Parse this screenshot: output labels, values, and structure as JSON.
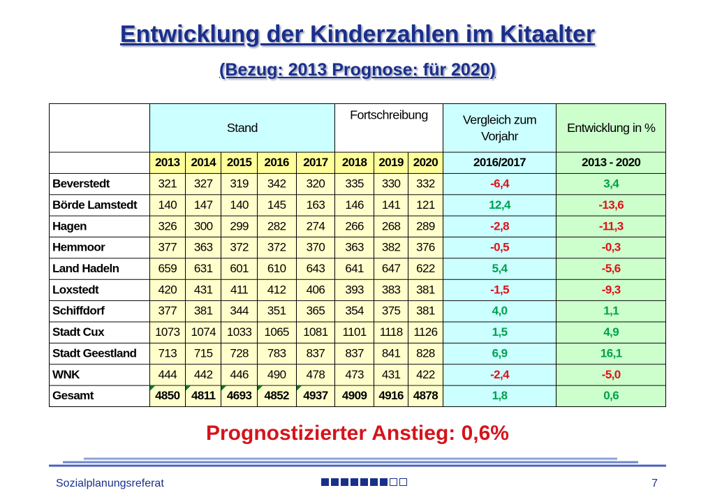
{
  "title": "Entwicklung der Kinderzahlen im Kitaalter",
  "subtitle": "(Bezug: 2013 Prognose: für 2020)",
  "table": {
    "group_stand": "Stand",
    "group_fortschreibung": "Fortschreibung",
    "group_vergleich_line1": "Vergleich zum",
    "group_vergleich_line2": "Vorjahr",
    "group_entwicklung": "Entwicklung in %",
    "years": [
      "2013",
      "2014",
      "2015",
      "2016",
      "2017",
      "2018",
      "2019",
      "2020"
    ],
    "col_vergleich": "2016/2017",
    "col_entwicklung": "2013 - 2020",
    "rows": [
      {
        "name": "Beverstedt",
        "values": [
          "321",
          "327",
          "319",
          "342",
          "320",
          "335",
          "330",
          "332"
        ],
        "vgl": "-6,4",
        "ent": "3,4"
      },
      {
        "name": "Börde Lamstedt",
        "values": [
          "140",
          "147",
          "140",
          "145",
          "163",
          "146",
          "141",
          "121"
        ],
        "vgl": "12,4",
        "ent": "-13,6"
      },
      {
        "name": "Hagen",
        "values": [
          "326",
          "300",
          "299",
          "282",
          "274",
          "266",
          "268",
          "289"
        ],
        "vgl": "-2,8",
        "ent": "-11,3"
      },
      {
        "name": "Hemmoor",
        "values": [
          "377",
          "363",
          "372",
          "372",
          "370",
          "363",
          "382",
          "376"
        ],
        "vgl": "-0,5",
        "ent": "-0,3"
      },
      {
        "name": "Land Hadeln",
        "values": [
          "659",
          "631",
          "601",
          "610",
          "643",
          "641",
          "647",
          "622"
        ],
        "vgl": "5,4",
        "ent": "-5,6"
      },
      {
        "name": "Loxstedt",
        "values": [
          "420",
          "431",
          "411",
          "412",
          "406",
          "393",
          "383",
          "381"
        ],
        "vgl": "-1,5",
        "ent": "-9,3"
      },
      {
        "name": "Schiffdorf",
        "values": [
          "377",
          "381",
          "344",
          "351",
          "365",
          "354",
          "375",
          "381"
        ],
        "vgl": "4,0",
        "ent": "1,1"
      },
      {
        "name": "Stadt Cux",
        "values": [
          "1073",
          "1074",
          "1033",
          "1065",
          "1081",
          "1101",
          "1118",
          "1126"
        ],
        "vgl": "1,5",
        "ent": "4,9"
      },
      {
        "name": "Stadt Geestland",
        "values": [
          "713",
          "715",
          "728",
          "783",
          "837",
          "837",
          "841",
          "828"
        ],
        "vgl": "6,9",
        "ent": "16,1"
      },
      {
        "name": "WNK",
        "values": [
          "444",
          "442",
          "446",
          "490",
          "478",
          "473",
          "431",
          "422"
        ],
        "vgl": "-2,4",
        "ent": "-5,0"
      }
    ],
    "total": {
      "name": "Gesamt",
      "values": [
        "4850",
        "4811",
        "4693",
        "4852",
        "4937",
        "4909",
        "4916",
        "4878"
      ],
      "vgl": "1,8",
      "ent": "0,6"
    }
  },
  "prognose_text": "Prognostizierter Anstieg: 0,6%",
  "footer": {
    "left": "Sozialplanungsreferat",
    "page_number": "7",
    "progress_boxes": {
      "filled": 7,
      "total": 9
    }
  },
  "colors": {
    "title": "#1a2f8a",
    "positive": "#00a050",
    "negative": "#e0101a",
    "cyan_fill": "#ccffff",
    "green_fill": "#ccffcc",
    "yellow_fill": "#ffffcc",
    "prognose": "#d4141c"
  }
}
